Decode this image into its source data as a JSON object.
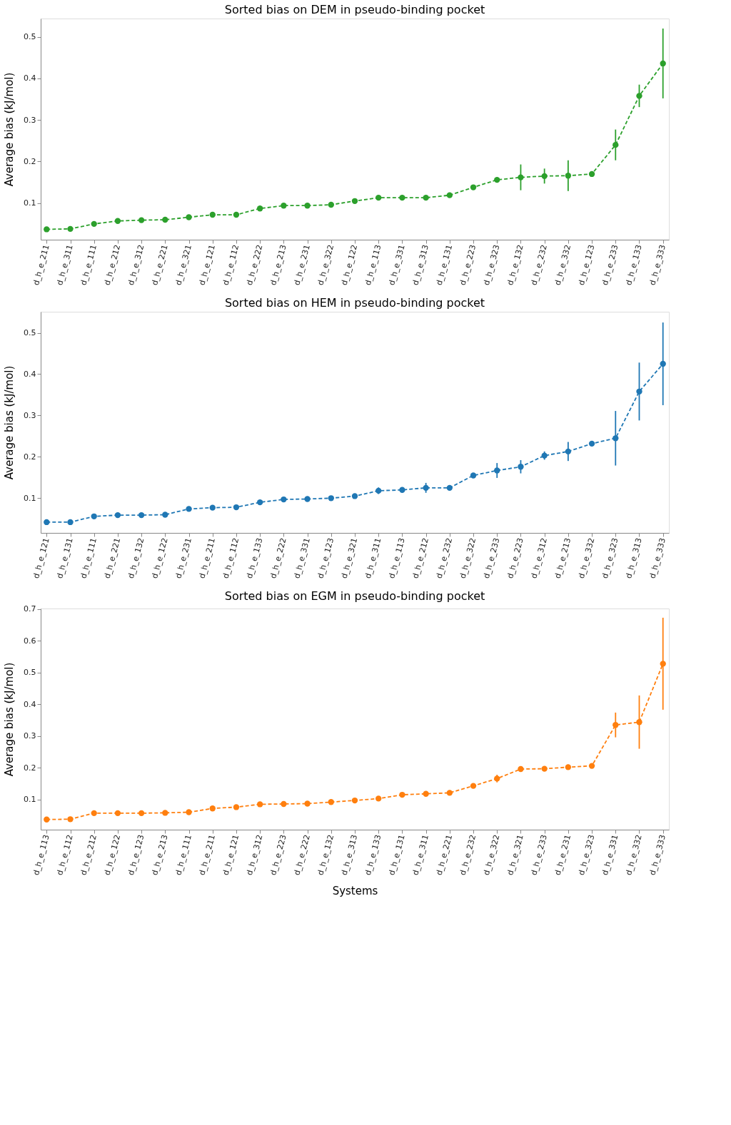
{
  "chart_data": [
    {
      "type": "line",
      "title": "Sorted bias on DEM in pseudo-binding pocket",
      "ylabel": "Average bias (kJ/mol)",
      "marker": "circle",
      "line_style": "dashed",
      "categories": [
        "d_h_e_211",
        "d_h_e_311",
        "d_h_e_111",
        "d_h_e_212",
        "d_h_e_312",
        "d_h_e_221",
        "d_h_e_321",
        "d_h_e_121",
        "d_h_e_112",
        "d_h_e_222",
        "d_h_e_213",
        "d_h_e_231",
        "d_h_e_322",
        "d_h_e_122",
        "d_h_e_113",
        "d_h_e_331",
        "d_h_e_313",
        "d_h_e_131",
        "d_h_e_223",
        "d_h_e_323",
        "d_h_e_132",
        "d_h_e_232",
        "d_h_e_332",
        "d_h_e_123",
        "d_h_e_233",
        "d_h_e_133",
        "d_h_e_333"
      ],
      "series": [
        {
          "color": "#2ca02c",
          "values": [
            0.037,
            0.038,
            0.05,
            0.057,
            0.059,
            0.06,
            0.066,
            0.072,
            0.072,
            0.087,
            0.094,
            0.094,
            0.096,
            0.105,
            0.113,
            0.113,
            0.113,
            0.119,
            0.138,
            0.156,
            0.162,
            0.165,
            0.166,
            0.17,
            0.24,
            0.358,
            0.436
          ],
          "errors": [
            null,
            null,
            null,
            null,
            null,
            null,
            null,
            null,
            null,
            null,
            null,
            null,
            null,
            null,
            null,
            null,
            null,
            null,
            null,
            null,
            0.031,
            0.018,
            0.037,
            null,
            0.037,
            0.027,
            0.084
          ]
        }
      ],
      "ylim": [
        0.012,
        0.544
      ],
      "yticks": [
        0.1,
        0.2,
        0.3,
        0.4,
        0.5
      ]
    },
    {
      "type": "line",
      "title": "Sorted bias on HEM in pseudo-binding pocket",
      "ylabel": "Average bias (kJ/mol)",
      "marker": "circle",
      "line_style": "dashed",
      "categories": [
        "d_h_e_121",
        "d_h_e_131",
        "d_h_e_111",
        "d_h_e_221",
        "d_h_e_132",
        "d_h_e_122",
        "d_h_e_231",
        "d_h_e_211",
        "d_h_e_112",
        "d_h_e_133",
        "d_h_e_222",
        "d_h_e_331",
        "d_h_e_123",
        "d_h_e_321",
        "d_h_e_311",
        "d_h_e_113",
        "d_h_e_212",
        "d_h_e_232",
        "d_h_e_322",
        "d_h_e_233",
        "d_h_e_223",
        "d_h_e_312",
        "d_h_e_213",
        "d_h_e_332",
        "d_h_e_323",
        "d_h_e_313",
        "d_h_e_333"
      ],
      "series": [
        {
          "color": "#1f77b4",
          "values": [
            0.042,
            0.042,
            0.056,
            0.059,
            0.059,
            0.06,
            0.074,
            0.077,
            0.078,
            0.09,
            0.097,
            0.098,
            0.1,
            0.105,
            0.118,
            0.12,
            0.125,
            0.125,
            0.155,
            0.167,
            0.176,
            0.203,
            0.213,
            0.232,
            0.245,
            0.358,
            0.425
          ],
          "errors": [
            null,
            null,
            null,
            null,
            null,
            null,
            null,
            null,
            null,
            null,
            null,
            null,
            null,
            null,
            0.008,
            null,
            0.012,
            null,
            null,
            0.018,
            0.016,
            0.01,
            0.023,
            null,
            0.066,
            0.07,
            0.1
          ]
        }
      ],
      "ylim": [
        0.016,
        0.551
      ],
      "yticks": [
        0.1,
        0.2,
        0.3,
        0.4,
        0.5
      ]
    },
    {
      "type": "line",
      "title": "Sorted bias on EGM in pseudo-binding pocket",
      "ylabel": "Average bias (kJ/mol)",
      "xlabel": "Systems",
      "marker": "circle",
      "line_style": "dashed",
      "categories": [
        "d_h_e_113",
        "d_h_e_112",
        "d_h_e_212",
        "d_h_e_122",
        "d_h_e_123",
        "d_h_e_213",
        "d_h_e_111",
        "d_h_e_211",
        "d_h_e_121",
        "d_h_e_312",
        "d_h_e_223",
        "d_h_e_222",
        "d_h_e_132",
        "d_h_e_313",
        "d_h_e_133",
        "d_h_e_131",
        "d_h_e_311",
        "d_h_e_221",
        "d_h_e_232",
        "d_h_e_322",
        "d_h_e_321",
        "d_h_e_233",
        "d_h_e_231",
        "d_h_e_323",
        "d_h_e_331",
        "d_h_e_332",
        "d_h_e_333"
      ],
      "series": [
        {
          "color": "#ff7f0e",
          "values": [
            0.037,
            0.038,
            0.057,
            0.057,
            0.057,
            0.058,
            0.06,
            0.072,
            0.076,
            0.085,
            0.086,
            0.087,
            0.092,
            0.097,
            0.103,
            0.115,
            0.118,
            0.121,
            0.143,
            0.166,
            0.196,
            0.197,
            0.202,
            0.206,
            0.335,
            0.344,
            0.528
          ],
          "errors": [
            null,
            null,
            null,
            null,
            null,
            null,
            null,
            null,
            null,
            null,
            null,
            null,
            null,
            null,
            null,
            null,
            null,
            null,
            null,
            0.012,
            null,
            null,
            0.008,
            null,
            0.039,
            0.084,
            0.145
          ]
        }
      ],
      "ylim": [
        0.005,
        0.702
      ],
      "yticks": [
        0.1,
        0.2,
        0.3,
        0.4,
        0.5,
        0.6,
        0.7
      ]
    }
  ]
}
